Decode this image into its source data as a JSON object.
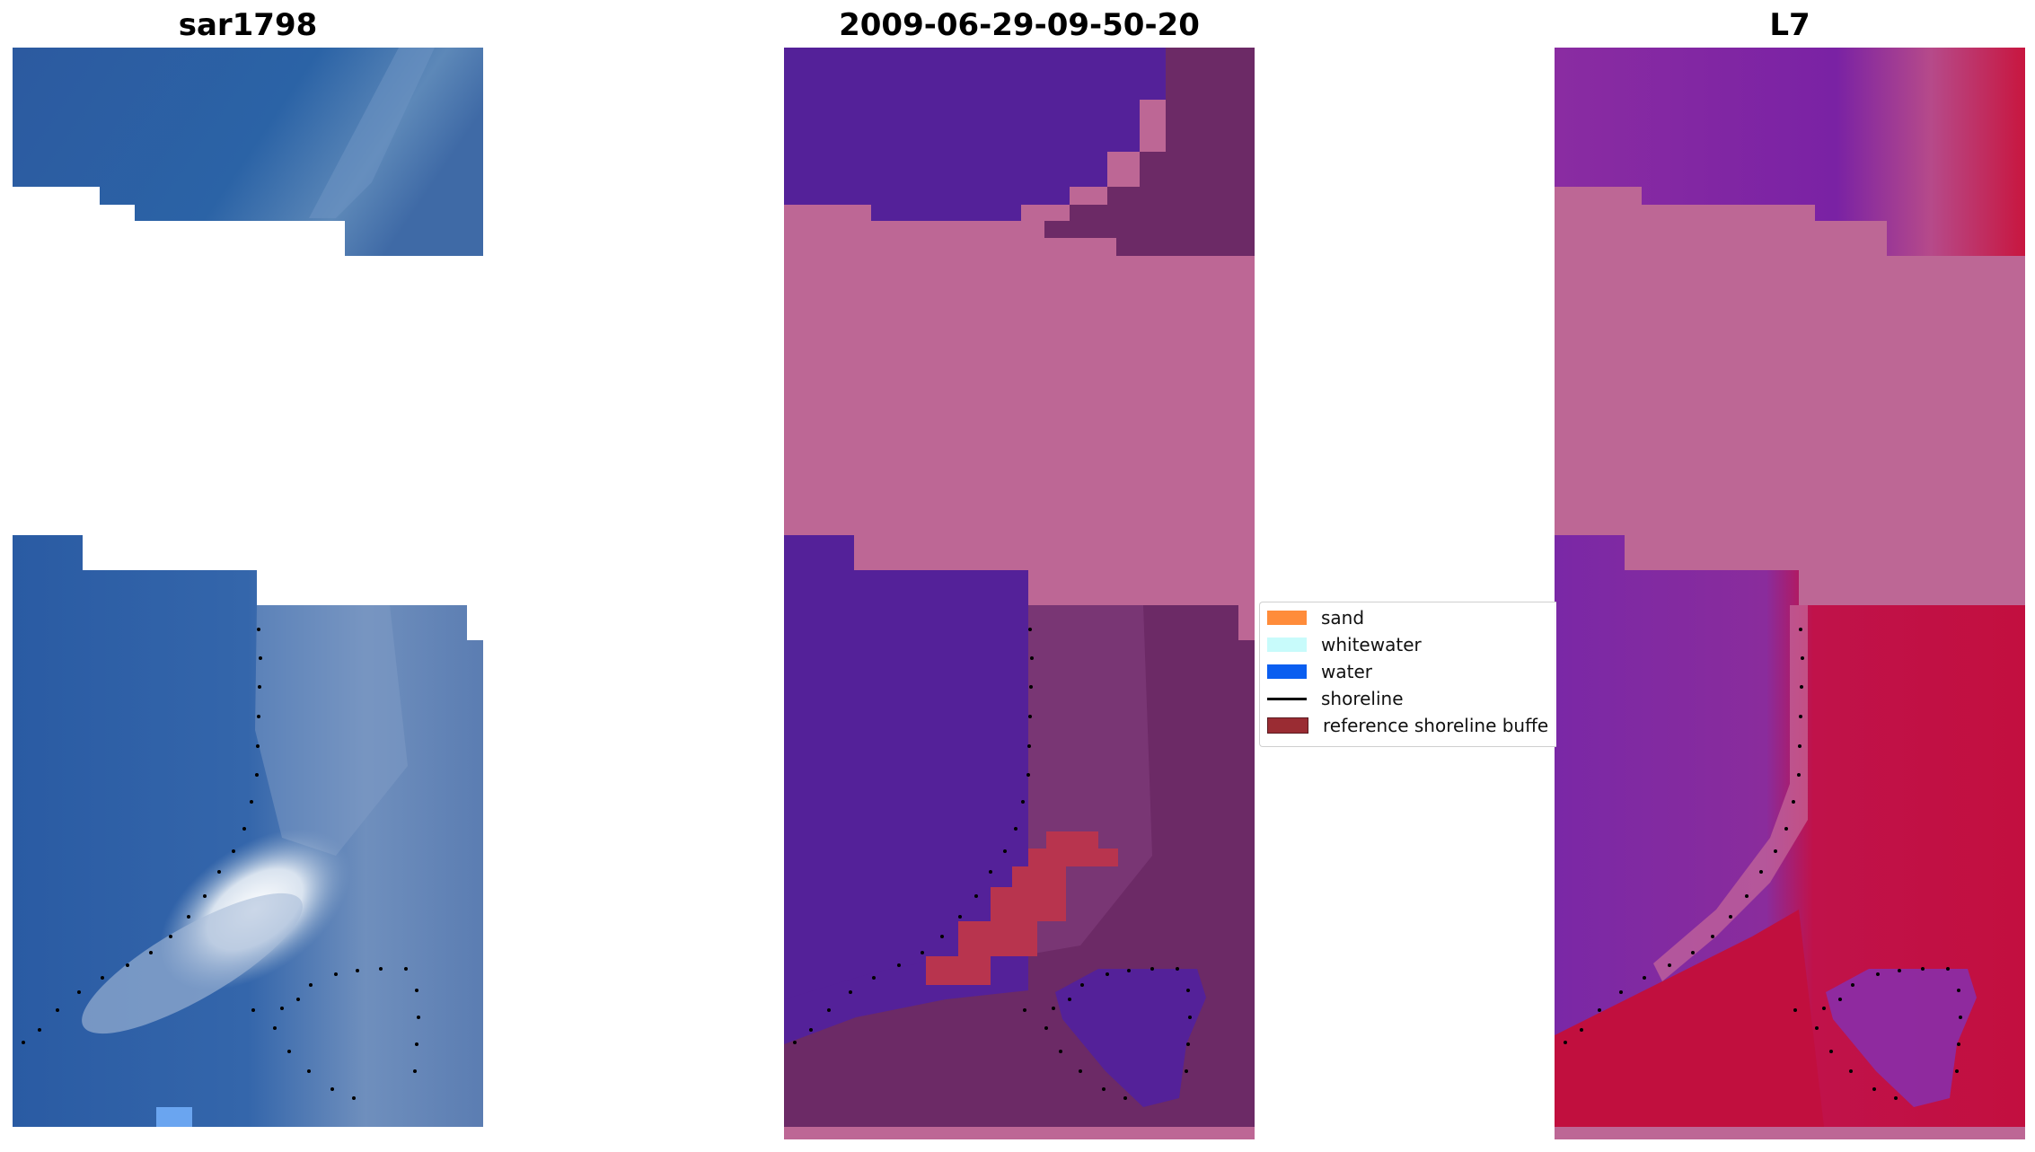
{
  "panels": [
    {
      "title": "sar1798",
      "style": "rgb"
    },
    {
      "title": "2009-06-29-09-50-20",
      "style": "classified"
    },
    {
      "title": "L7",
      "style": "index"
    }
  ],
  "legend": {
    "items": [
      {
        "label": "sand",
        "color": "#ff8c3a",
        "kind": "patch"
      },
      {
        "label": "whitewater",
        "color": "#c8fbfb",
        "kind": "patch"
      },
      {
        "label": "water",
        "color": "#0a5ef0",
        "kind": "patch"
      },
      {
        "label": "shoreline",
        "color": "#000000",
        "kind": "line"
      },
      {
        "label": "reference shoreline buffe",
        "color": "#9a2c33",
        "kind": "patch"
      }
    ]
  },
  "colors": {
    "nodata_pink": "#bd6795",
    "water_purple": "#542199",
    "land_dark": "#6c2a66",
    "sand_red": "#b8344e",
    "index_red": "#c0113f",
    "index_purple": "#7a2aa0",
    "sar_blue": "#2a5ea6",
    "sar_light": "#c9d4e4"
  }
}
